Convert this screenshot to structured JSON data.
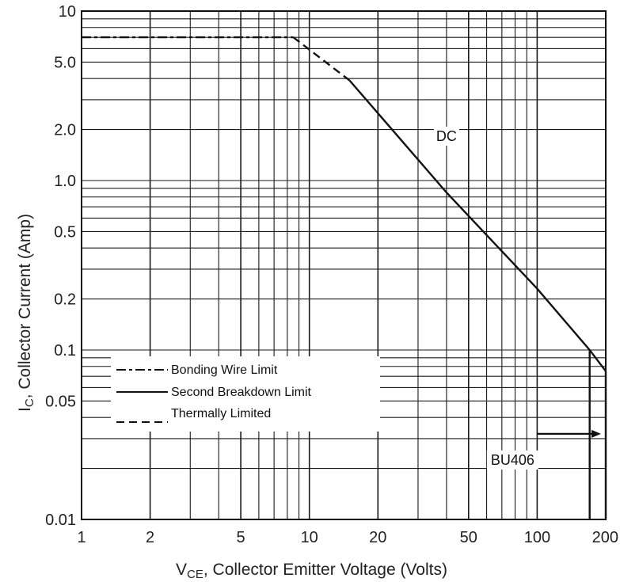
{
  "chart_data": {
    "type": "line",
    "title": "",
    "xlabel": {
      "main": "V",
      "sub": "CE",
      "rest": ", Collector Emitter Voltage (Volts)"
    },
    "ylabel": {
      "main": "I",
      "sub": "C",
      "rest": ", Collector Current (Amp)"
    },
    "x_scale": "log",
    "y_scale": "log",
    "xlim": [
      1,
      200
    ],
    "ylim": [
      0.01,
      10
    ],
    "x_ticks": [
      {
        "value": 1,
        "label": "1"
      },
      {
        "value": 2,
        "label": "2"
      },
      {
        "value": 5,
        "label": "5"
      },
      {
        "value": 10,
        "label": "10"
      },
      {
        "value": 20,
        "label": "20"
      },
      {
        "value": 50,
        "label": "50"
      },
      {
        "value": 100,
        "label": "100"
      },
      {
        "value": 200,
        "label": "200"
      }
    ],
    "y_ticks": [
      {
        "value": 0.01,
        "label": "0.01"
      },
      {
        "value": 0.05,
        "label": "0.05"
      },
      {
        "value": 0.1,
        "label": "0.1"
      },
      {
        "value": 0.2,
        "label": "0.2"
      },
      {
        "value": 0.5,
        "label": "0.5"
      },
      {
        "value": 1,
        "label": "1.0"
      },
      {
        "value": 2,
        "label": "2.0"
      },
      {
        "value": 5,
        "label": "5.0"
      },
      {
        "value": 10,
        "label": "10"
      }
    ],
    "grid": true,
    "legend_position": "lower-left",
    "series": [
      {
        "name": "Bonding Wire Limit",
        "style": "dash-dot",
        "x": [
          1,
          8.5
        ],
        "y": [
          7,
          7
        ]
      },
      {
        "name": "Thermally Limited",
        "style": "dashed",
        "x": [
          8.5,
          15
        ],
        "y": [
          7,
          3.9
        ]
      },
      {
        "name": "Second Breakdown Limit",
        "style": "solid",
        "x": [
          15,
          40,
          100,
          170,
          200
        ],
        "y": [
          3.9,
          0.85,
          0.23,
          0.1,
          0.075
        ]
      }
    ],
    "vertical_drops": [
      {
        "x": 170,
        "from": 0.1,
        "to": 0.01
      },
      {
        "x": 200,
        "from": 0.075,
        "to": 0.01
      }
    ],
    "arrow": {
      "x_from": 100,
      "x_to": 200,
      "y": 0.032
    },
    "annotations": [
      {
        "text": "DC",
        "x": 40,
        "y": 1.75
      },
      {
        "text": "BU406",
        "x": 78,
        "y": 0.0215
      }
    ],
    "colors": {
      "curve": "#111111",
      "grid": "#1a1a1a",
      "background": "#ffffff"
    }
  }
}
